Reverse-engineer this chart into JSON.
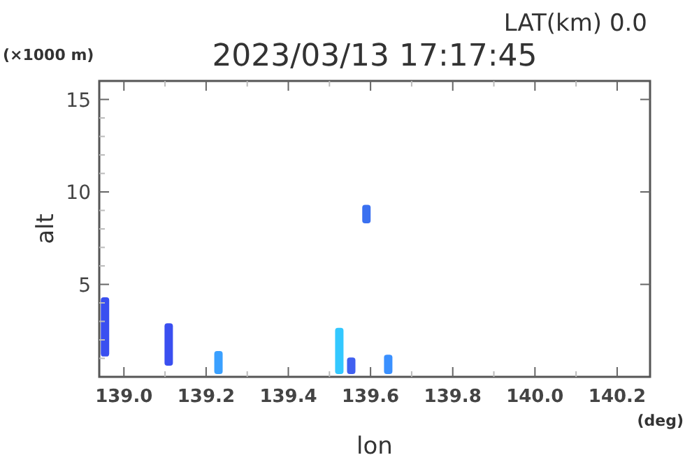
{
  "chart_data": {
    "type": "bar",
    "title": "2023/03/13 17:17:45",
    "subtitle": "LAT(km) 0.0",
    "xlabel": "lon",
    "ylabel": "alt",
    "annotations": [
      "(×1000 m)",
      "(deg)"
    ],
    "x": [
      138.954,
      139.109,
      139.23,
      139.524,
      139.553,
      139.59,
      139.643
    ],
    "base": [
      1.1,
      0.6,
      0.15,
      0.15,
      0.15,
      8.3,
      0.15
    ],
    "values": [
      3.2,
      2.3,
      1.25,
      2.5,
      0.9,
      1.0,
      1.05
    ],
    "colors": [
      "#3a4ff0",
      "#3a4ff0",
      "#3aa0ff",
      "#33c8ff",
      "#4060f0",
      "#3a70f0",
      "#3a90ff"
    ],
    "xlim": [
      138.94,
      140.28
    ],
    "xticks": [
      {
        "value": 139,
        "label": "139.0"
      },
      {
        "value": 139.1,
        "label": null
      },
      {
        "value": 139.2,
        "label": "139.2"
      },
      {
        "value": 139.3,
        "label": null
      },
      {
        "value": 139.4,
        "label": "139.4"
      },
      {
        "value": 139.5,
        "label": null
      },
      {
        "value": 139.6,
        "label": "139.6"
      },
      {
        "value": 139.7,
        "label": null
      },
      {
        "value": 139.8,
        "label": "139.8"
      },
      {
        "value": 139.9,
        "label": null
      },
      {
        "value": 140,
        "label": "140.0"
      },
      {
        "value": 140.1,
        "label": null
      },
      {
        "value": 140.2,
        "label": "140.2"
      }
    ],
    "ylim": [
      0,
      16
    ],
    "yticks": [
      {
        "value": 1,
        "label": null
      },
      {
        "value": 2,
        "label": null
      },
      {
        "value": 3,
        "label": null
      },
      {
        "value": 4,
        "label": null
      },
      5,
      {
        "value": 6,
        "label": null
      },
      {
        "value": 7,
        "label": null
      },
      {
        "value": 8,
        "label": null
      },
      {
        "value": 9,
        "label": null
      },
      10,
      {
        "value": 11,
        "label": null
      },
      {
        "value": 12,
        "label": null
      },
      {
        "value": 13,
        "label": null
      },
      {
        "value": 14,
        "label": null
      },
      15
    ],
    "grid": false
  }
}
